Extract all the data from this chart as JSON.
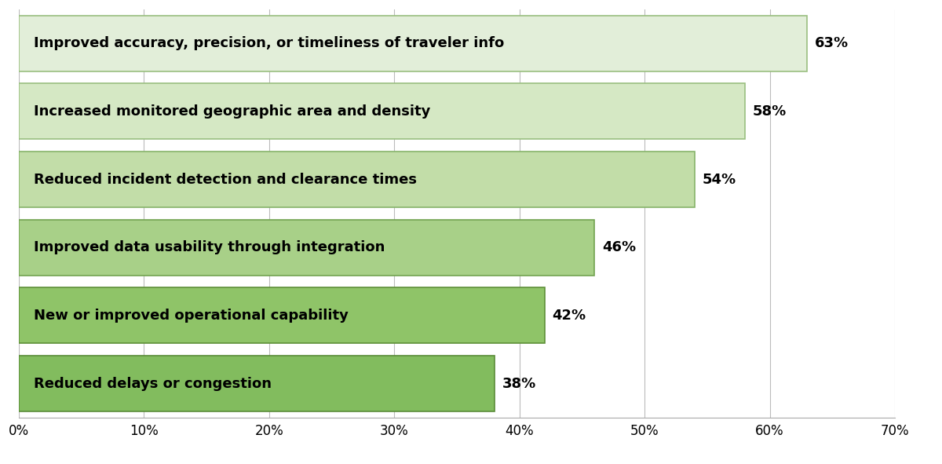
{
  "categories": [
    "Improved accuracy, precision, or timeliness of traveler info",
    "Increased monitored geographic area and density",
    "Reduced incident detection and clearance times",
    "Improved data usability through integration",
    "New or improved operational capability",
    "Reduced delays or congestion"
  ],
  "values": [
    63,
    58,
    54,
    46,
    42,
    38
  ],
  "bar_colors": [
    "#e2eed9",
    "#d5e8c4",
    "#c2dda8",
    "#a8d088",
    "#8fc468",
    "#82bc5e"
  ],
  "bar_edge_colors": [
    "#9abf80",
    "#9abf80",
    "#86b36a",
    "#72a350",
    "#5e9038",
    "#5a8c38"
  ],
  "label_fontsize": 13,
  "tick_fontsize": 12,
  "xlim": [
    0,
    70
  ],
  "xticks": [
    0,
    10,
    20,
    30,
    40,
    50,
    60,
    70
  ],
  "xtick_labels": [
    "0%",
    "10%",
    "20%",
    "30%",
    "40%",
    "50%",
    "60%",
    "70%"
  ],
  "background_color": "#ffffff",
  "bar_height": 0.82,
  "value_label_fontsize": 13,
  "text_color": "#000000",
  "grid_color": "#bbbbbb",
  "figsize": [
    12.0,
    5.91
  ],
  "dpi": 100
}
